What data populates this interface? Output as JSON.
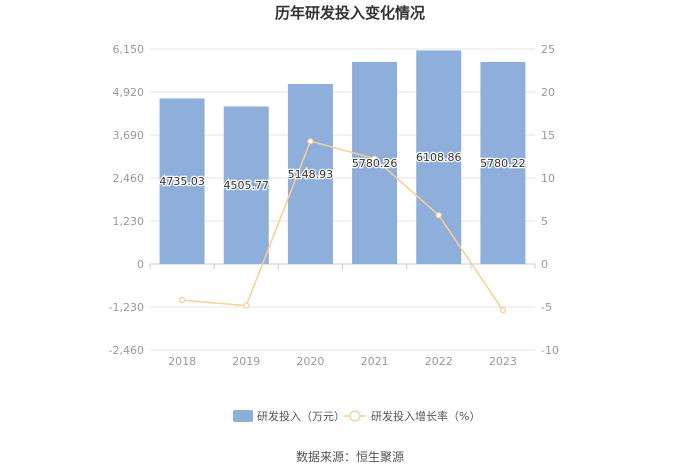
{
  "title": "历年研发投入变化情况",
  "source": "数据来源：恒生聚源",
  "colors": {
    "bar": "#8eaedb",
    "line": "#f8cf93",
    "grid": "#e6e6e6",
    "axis_text": "#999999"
  },
  "chart_data": {
    "type": "bar",
    "title": "历年研发投入变化情况",
    "categories": [
      "2018",
      "2019",
      "2020",
      "2021",
      "2022",
      "2023"
    ],
    "series": [
      {
        "name": "研发投入（万元）",
        "type": "bar",
        "axis": "left",
        "values": [
          4735.03,
          4505.77,
          5148.93,
          5780.26,
          6108.86,
          5780.22
        ],
        "labels": [
          "4735.03",
          "4505.77",
          "5148.93",
          "5780.26",
          "6108.86",
          "5780.22"
        ]
      },
      {
        "name": "研发投入增长率（%）",
        "type": "line",
        "axis": "right",
        "values": [
          -4.2,
          -4.84,
          14.27,
          12.26,
          5.68,
          -5.38
        ]
      }
    ],
    "y_left": {
      "ticks": [
        6150,
        4920,
        3690,
        2460,
        1230,
        0,
        -1230,
        -2460
      ],
      "tick_labels": [
        "6,150",
        "4,920",
        "3,690",
        "2,460",
        "1,230",
        "0",
        "-1,230",
        "-2,460"
      ],
      "lim": [
        -2460,
        6150
      ]
    },
    "y_right": {
      "ticks": [
        25,
        20,
        15,
        10,
        5,
        0,
        -5,
        -10
      ],
      "tick_labels": [
        "25",
        "20",
        "15",
        "10",
        "5",
        "0",
        "-5",
        "-10"
      ],
      "lim": [
        -10,
        25
      ]
    },
    "grid": true,
    "legend": "bottom"
  }
}
